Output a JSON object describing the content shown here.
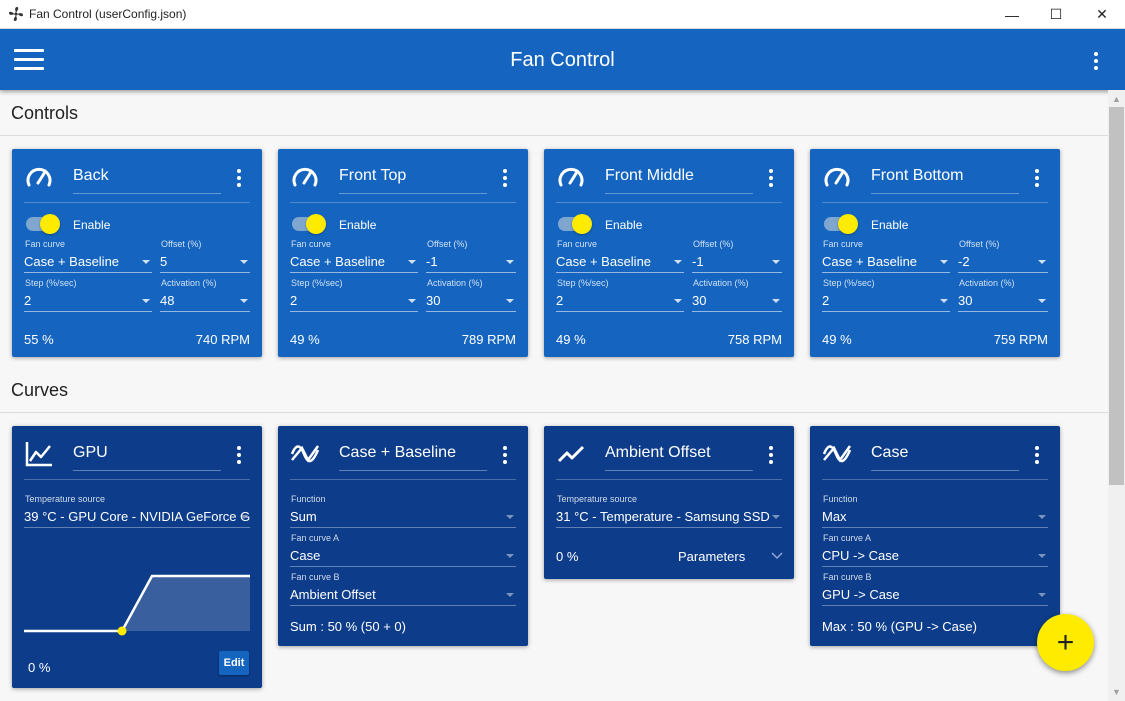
{
  "window": {
    "title": "Fan Control (userConfig.json)",
    "minimize": "—",
    "maximize": "☐",
    "close": "✕"
  },
  "appbar": {
    "title": "Fan Control"
  },
  "sections": {
    "controls": "Controls",
    "curves": "Curves"
  },
  "labels": {
    "enable": "Enable",
    "fan_curve": "Fan curve",
    "offset": "Offset (%)",
    "step": "Step (%/sec)",
    "activation": "Activation (%)",
    "temperature_source": "Temperature source",
    "function": "Function",
    "fan_curve_a": "Fan curve A",
    "fan_curve_b": "Fan curve B",
    "parameters": "Parameters",
    "edit": "Edit"
  },
  "controls": [
    {
      "name": "Back",
      "enabled": true,
      "fan_curve": "Case + Baseline",
      "offset": "5",
      "step": "2",
      "activation": "48",
      "percent": "55 %",
      "rpm": "740 RPM"
    },
    {
      "name": "Front Top",
      "enabled": true,
      "fan_curve": "Case + Baseline",
      "offset": "-1",
      "step": "2",
      "activation": "30",
      "percent": "49 %",
      "rpm": "789 RPM"
    },
    {
      "name": "Front Middle",
      "enabled": true,
      "fan_curve": "Case + Baseline",
      "offset": "-1",
      "step": "2",
      "activation": "30",
      "percent": "49 %",
      "rpm": "758 RPM"
    },
    {
      "name": "Front Bottom",
      "enabled": true,
      "fan_curve": "Case + Baseline",
      "offset": "-2",
      "step": "2",
      "activation": "30",
      "percent": "49 %",
      "rpm": "759 RPM"
    }
  ],
  "curves": {
    "gpu": {
      "name": "GPU",
      "temperature_source": "39 °C - GPU Core - NVIDIA GeForce G",
      "percent": "0 %"
    },
    "case_baseline": {
      "name": "Case + Baseline",
      "function": "Sum",
      "fan_curve_a": "Case",
      "fan_curve_b": "Ambient Offset",
      "result": "Sum : 50 % (50 + 0)"
    },
    "ambient_offset": {
      "name": "Ambient Offset",
      "temperature_source": "31 °C - Temperature - Samsung SSD",
      "percent": "0 %"
    },
    "case": {
      "name": "Case",
      "function": "Max",
      "fan_curve_a": "CPU -> Case",
      "fan_curve_b": "GPU -> Case",
      "result": "Max : 50 % (GPU -> Case)"
    }
  },
  "fab": {
    "label": "+"
  },
  "colors": {
    "appbar": "#1565c0",
    "control_card": "#1565c0",
    "curve_card": "#0d3d8a",
    "accent": "#ffeb00"
  },
  "icons": {
    "app": "fan-icon",
    "menu": "hamburger-icon",
    "control": "speedometer-icon",
    "gpu_curve": "line-chart-icon",
    "mix_curve": "mix-curve-icon",
    "offset_curve": "trend-icon"
  }
}
